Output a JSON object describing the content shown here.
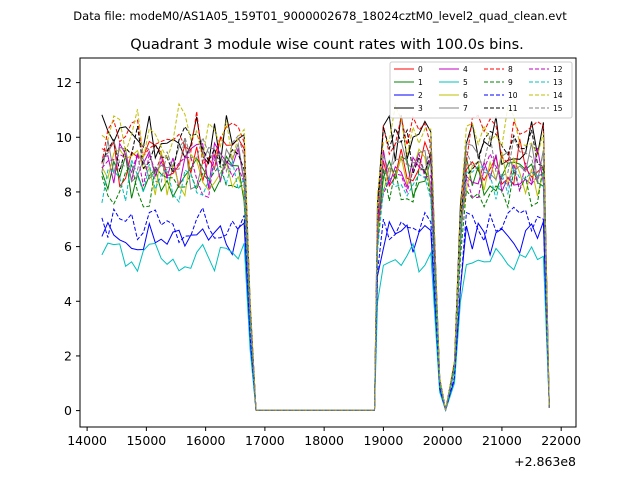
{
  "chart_data": {
    "type": "line",
    "suptitle": "Data file: modeM0/AS1A05_159T01_9000002678_18024cztM0_level2_quad_clean.evt",
    "title": "Quadrant 3 module wise count rates with 100.0s bins.",
    "xlabel": "",
    "ylabel": "",
    "x_offset_label": "+2.863e8",
    "xlim": [
      13880,
      22250
    ],
    "ylim": [
      -0.6,
      12.9
    ],
    "x_ticks": [
      14000,
      15000,
      16000,
      17000,
      18000,
      19000,
      20000,
      21000,
      22000
    ],
    "x_tick_labels": [
      "14000",
      "15000",
      "16000",
      "17000",
      "18000",
      "19000",
      "20000",
      "21000",
      "22000"
    ],
    "y_ticks": [
      0,
      2,
      4,
      6,
      8,
      10,
      12
    ],
    "y_tick_labels": [
      "0",
      "2",
      "4",
      "6",
      "8",
      "10",
      "12"
    ],
    "legend_position": "top-right",
    "segments": [
      {
        "start": 14250,
        "end": 16650
      },
      {
        "start": 18900,
        "end": 19850
      },
      {
        "start": 20300,
        "end": 21850
      }
    ],
    "gaps": [
      {
        "from": 16650,
        "to": 18900,
        "points": [
          16750,
          16850,
          17250,
          17750,
          18250,
          18750,
          18850
        ]
      },
      {
        "from": 19850,
        "to": 20300,
        "points": [
          19950,
          20050,
          20200
        ]
      }
    ],
    "series": [
      {
        "name": "0",
        "color": "#ff0000",
        "dash": "solid",
        "level": 9.1
      },
      {
        "name": "1",
        "color": "#008000",
        "dash": "solid",
        "level": 8.5
      },
      {
        "name": "2",
        "color": "#0000ff",
        "dash": "solid",
        "level": 6.3
      },
      {
        "name": "3",
        "color": "#000000",
        "dash": "solid",
        "level": 9.9
      },
      {
        "name": "4",
        "color": "#c000c0",
        "dash": "solid",
        "level": 8.9
      },
      {
        "name": "5",
        "color": "#00bfbf",
        "dash": "solid",
        "level": 5.6
      },
      {
        "name": "6",
        "color": "#bfbf00",
        "dash": "solid",
        "level": 8.7
      },
      {
        "name": "7",
        "color": "#808080",
        "dash": "solid",
        "level": 9.0
      },
      {
        "name": "8",
        "color": "#ff0000",
        "dash": "dashed",
        "level": 10.0
      },
      {
        "name": "9",
        "color": "#008000",
        "dash": "dashed",
        "level": 8.2
      },
      {
        "name": "10",
        "color": "#0000ff",
        "dash": "dashed",
        "level": 6.8
      },
      {
        "name": "11",
        "color": "#000000",
        "dash": "dashed",
        "level": 9.5
      },
      {
        "name": "12",
        "color": "#c000c0",
        "dash": "dashed",
        "level": 8.6
      },
      {
        "name": "13",
        "color": "#00bfbf",
        "dash": "dashed",
        "level": 8.4
      },
      {
        "name": "14",
        "color": "#bfbf00",
        "dash": "dashed",
        "level": 10.2
      },
      {
        "name": "15",
        "color": "#808080",
        "dash": "dashed",
        "level": 9.2
      }
    ]
  }
}
